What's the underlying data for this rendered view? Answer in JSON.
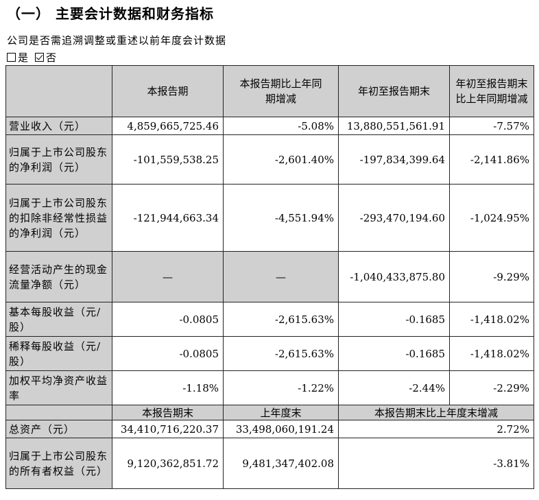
{
  "title": "（一）  主要会计数据和财务指标",
  "subtitle": "公司是否需追溯调整或重述以前年度会计数据",
  "options": [
    {
      "label": "是",
      "checked": false
    },
    {
      "label": "否",
      "checked": true
    }
  ],
  "headers": {
    "blank": "",
    "col1": "本报告期",
    "col2": "本报告期比上年同期增减",
    "col3": "年初至报告期末",
    "col4": "年初至报告期末比上年同期增减"
  },
  "rows": [
    {
      "label": "营业收入（元）",
      "v1": "4,859,665,725.46",
      "v2": "-5.08%",
      "v3": "13,880,551,561.91",
      "v4": "-7.57%"
    },
    {
      "label": "归属于上市公司股东的净利润（元）",
      "v1": "-101,559,538.25",
      "v2": "-2,601.40%",
      "v3": "-197,834,399.64",
      "v4": "-2,141.86%"
    },
    {
      "label": "归属于上市公司股东的扣除非经常性损益的净利润（元）",
      "v1": "-121,944,663.34",
      "v2": "-4,551.94%",
      "v3": "-293,470,194.60",
      "v4": "-1,024.95%"
    },
    {
      "label": "经营活动产生的现金流量净额（元）",
      "v1": "—",
      "v2": "—",
      "v3": "-1,040,433,875.80",
      "v4": "-9.29%"
    },
    {
      "label": "基本每股收益（元/股）",
      "v1": "-0.0805",
      "v2": "-2,615.63%",
      "v3": "-0.1685",
      "v4": "-1,418.02%"
    },
    {
      "label": "稀释每股收益（元/股）",
      "v1": "-0.0805",
      "v2": "-2,615.63%",
      "v3": "-0.1685",
      "v4": "-1,418.02%"
    },
    {
      "label": "加权平均净资产收益率",
      "v1": "-1.18%",
      "v2": "-1.22%",
      "v3": "-2.44%",
      "v4": "-2.29%"
    }
  ],
  "headers2": {
    "col1": "本报告期末",
    "col2": "上年度末",
    "col3": "本报告期末比上年度末增减"
  },
  "rows2": [
    {
      "label": "总资产（元）",
      "v1": "34,410,716,220.37",
      "v2": "33,498,060,191.24",
      "v3": "2.72%"
    },
    {
      "label": "归属于上市公司股东的所有者权益（元）",
      "v1": "9,120,362,851.72",
      "v2": "9,481,347,402.08",
      "v3": "-3.81%"
    }
  ]
}
